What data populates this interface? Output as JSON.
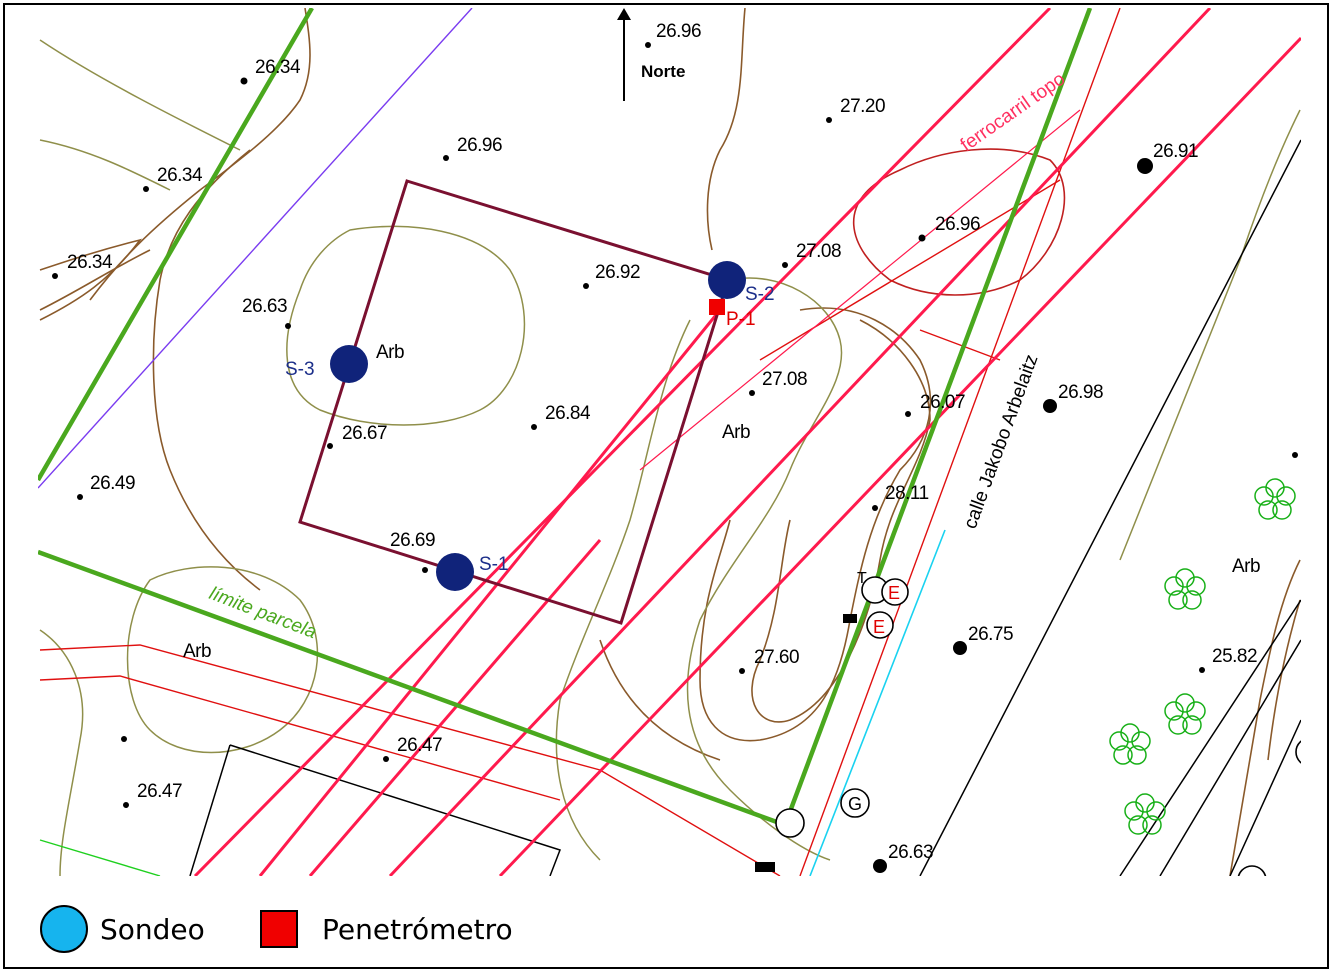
{
  "north": {
    "label": "Norte"
  },
  "streets": {
    "calle": "calle Jakobo Arbelaitz",
    "ferrocarril": "ferrocarril topo"
  },
  "parcel": {
    "label": "límite parcela"
  },
  "points": {
    "s1": "S-1",
    "s2": "S-2",
    "s3": "S-3",
    "p1": "P-1"
  },
  "trees": {
    "arb": "Arb"
  },
  "elevations": [
    "26.96",
    "26.34",
    "27.20",
    "26.96",
    "26.34",
    "26.91",
    "26.96",
    "27.08",
    "26.34",
    "26.92",
    "26.63",
    "27.08",
    "26.98",
    "26.07",
    "26.84",
    "26.67",
    "26.49",
    "28.11",
    "26.69",
    "26.75",
    "27.60",
    "25.82",
    "26.47",
    "26.47",
    "26.63"
  ],
  "symbols": {
    "e": "E",
    "g": "G",
    "t": "T"
  },
  "legend": {
    "sondeo": "Sondeo",
    "penetrometro": "Penetrómetro"
  },
  "colors": {
    "sondeo": "#16b4ee",
    "penetrometro": "#f00000",
    "boundary": "#4aa81e",
    "rail": "#ff1a4d",
    "contour": "#8a5a2b",
    "site": "#7a1030"
  }
}
